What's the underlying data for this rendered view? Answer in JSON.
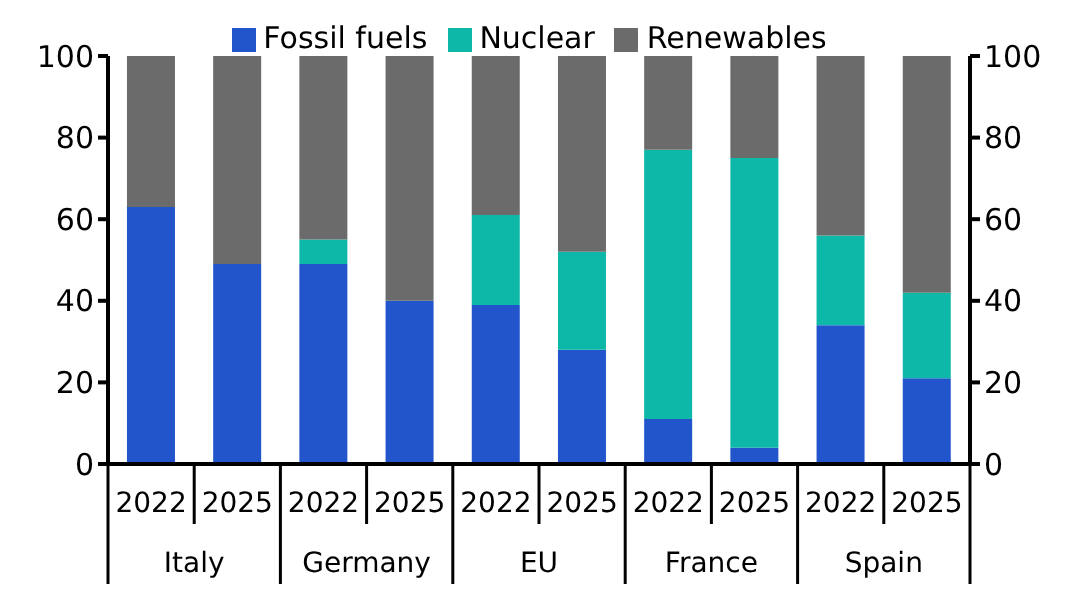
{
  "chart_data": {
    "type": "bar",
    "stacked": true,
    "categories": [
      "2022",
      "2025",
      "2022",
      "2025",
      "2022",
      "2025",
      "2022",
      "2025",
      "2022",
      "2025"
    ],
    "annotations": [
      "Italy",
      "Germany",
      "EU",
      "France",
      "Spain"
    ],
    "series": [
      {
        "name": "Fossil fuels",
        "color": "#2255cc",
        "values": [
          63,
          49,
          49,
          40,
          39,
          28,
          11,
          4,
          34,
          21
        ]
      },
      {
        "name": "Nuclear",
        "color": "#0db8a8",
        "values": [
          0,
          0,
          6,
          0,
          22,
          24,
          66,
          71,
          22,
          21
        ]
      },
      {
        "name": "Renewables",
        "color": "#6b6b6b",
        "values": [
          37,
          51,
          45,
          60,
          39,
          48,
          23,
          25,
          44,
          58
        ]
      }
    ],
    "ylim": [
      0,
      100
    ],
    "yticks": [
      0,
      20,
      40,
      60,
      80,
      100
    ],
    "y2lim": [
      0,
      100
    ],
    "y2ticks": [
      0,
      20,
      40,
      60,
      80,
      100
    ],
    "grid": false,
    "legend": "top"
  }
}
